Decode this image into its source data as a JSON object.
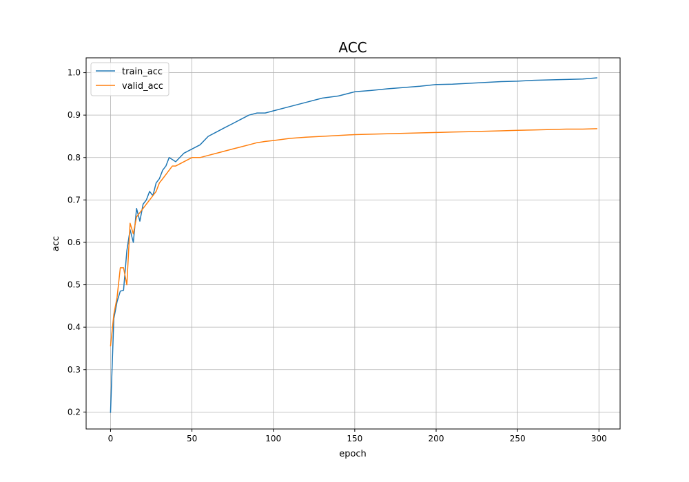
{
  "chart_data": {
    "type": "line",
    "title": "ACC",
    "xlabel": "epoch",
    "ylabel": "acc",
    "xlim": [
      -15,
      313
    ],
    "ylim": [
      0.16,
      1.035
    ],
    "xticks": [
      0,
      50,
      100,
      150,
      200,
      250,
      300
    ],
    "xtick_labels": [
      "0",
      "50",
      "100",
      "150",
      "200",
      "250",
      "300"
    ],
    "yticks": [
      0.2,
      0.3,
      0.4,
      0.5,
      0.6,
      0.7,
      0.8,
      0.9,
      1.0
    ],
    "ytick_labels": [
      "0.2",
      "0.3",
      "0.4",
      "0.5",
      "0.6",
      "0.7",
      "0.8",
      "0.9",
      "1.0"
    ],
    "grid": true,
    "legend_position": "top-left",
    "series": [
      {
        "name": "train_acc",
        "color": "#1f77b4",
        "points": [
          [
            0,
            0.198
          ],
          [
            2,
            0.42
          ],
          [
            4,
            0.46
          ],
          [
            6,
            0.485
          ],
          [
            8,
            0.487
          ],
          [
            10,
            0.58
          ],
          [
            12,
            0.63
          ],
          [
            14,
            0.6
          ],
          [
            16,
            0.68
          ],
          [
            18,
            0.65
          ],
          [
            20,
            0.69
          ],
          [
            22,
            0.7
          ],
          [
            24,
            0.72
          ],
          [
            26,
            0.71
          ],
          [
            28,
            0.74
          ],
          [
            30,
            0.75
          ],
          [
            32,
            0.77
          ],
          [
            34,
            0.78
          ],
          [
            36,
            0.8
          ],
          [
            38,
            0.795
          ],
          [
            40,
            0.79
          ],
          [
            45,
            0.81
          ],
          [
            50,
            0.82
          ],
          [
            55,
            0.83
          ],
          [
            60,
            0.85
          ],
          [
            65,
            0.86
          ],
          [
            70,
            0.87
          ],
          [
            75,
            0.88
          ],
          [
            80,
            0.89
          ],
          [
            85,
            0.9
          ],
          [
            90,
            0.905
          ],
          [
            95,
            0.905
          ],
          [
            100,
            0.91
          ],
          [
            110,
            0.92
          ],
          [
            120,
            0.93
          ],
          [
            130,
            0.94
          ],
          [
            140,
            0.945
          ],
          [
            150,
            0.955
          ],
          [
            160,
            0.958
          ],
          [
            170,
            0.962
          ],
          [
            180,
            0.965
          ],
          [
            190,
            0.968
          ],
          [
            200,
            0.972
          ],
          [
            210,
            0.973
          ],
          [
            220,
            0.975
          ],
          [
            230,
            0.977
          ],
          [
            240,
            0.979
          ],
          [
            250,
            0.98
          ],
          [
            260,
            0.982
          ],
          [
            270,
            0.983
          ],
          [
            280,
            0.984
          ],
          [
            290,
            0.985
          ],
          [
            299,
            0.988
          ]
        ]
      },
      {
        "name": "valid_acc",
        "color": "#ff7f0e",
        "points": [
          [
            0,
            0.355
          ],
          [
            2,
            0.43
          ],
          [
            4,
            0.47
          ],
          [
            6,
            0.54
          ],
          [
            8,
            0.54
          ],
          [
            10,
            0.5
          ],
          [
            12,
            0.645
          ],
          [
            14,
            0.62
          ],
          [
            16,
            0.66
          ],
          [
            18,
            0.67
          ],
          [
            20,
            0.68
          ],
          [
            22,
            0.69
          ],
          [
            24,
            0.7
          ],
          [
            26,
            0.71
          ],
          [
            28,
            0.72
          ],
          [
            30,
            0.74
          ],
          [
            32,
            0.75
          ],
          [
            34,
            0.76
          ],
          [
            36,
            0.77
          ],
          [
            38,
            0.78
          ],
          [
            40,
            0.78
          ],
          [
            45,
            0.79
          ],
          [
            50,
            0.8
          ],
          [
            55,
            0.8
          ],
          [
            60,
            0.805
          ],
          [
            65,
            0.81
          ],
          [
            70,
            0.815
          ],
          [
            75,
            0.82
          ],
          [
            80,
            0.825
          ],
          [
            85,
            0.83
          ],
          [
            90,
            0.835
          ],
          [
            95,
            0.838
          ],
          [
            100,
            0.84
          ],
          [
            110,
            0.845
          ],
          [
            120,
            0.848
          ],
          [
            130,
            0.85
          ],
          [
            140,
            0.852
          ],
          [
            150,
            0.854
          ],
          [
            160,
            0.855
          ],
          [
            170,
            0.856
          ],
          [
            180,
            0.857
          ],
          [
            190,
            0.858
          ],
          [
            200,
            0.859
          ],
          [
            210,
            0.86
          ],
          [
            220,
            0.861
          ],
          [
            230,
            0.862
          ],
          [
            240,
            0.863
          ],
          [
            250,
            0.864
          ],
          [
            260,
            0.865
          ],
          [
            270,
            0.866
          ],
          [
            280,
            0.867
          ],
          [
            290,
            0.867
          ],
          [
            299,
            0.868
          ]
        ]
      }
    ]
  }
}
